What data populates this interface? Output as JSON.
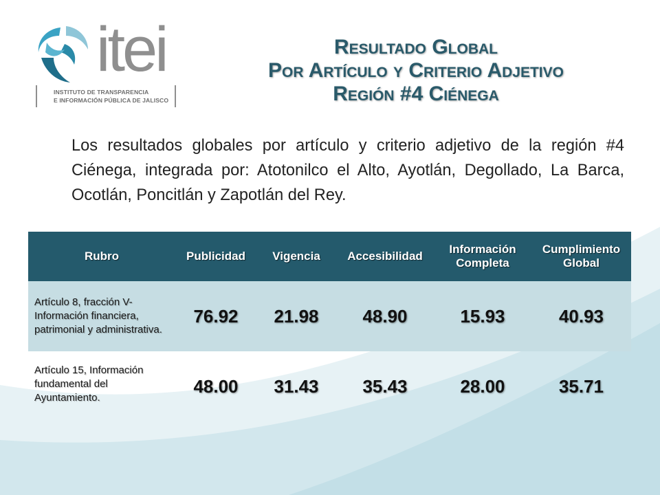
{
  "logo": {
    "wordmark": "itei",
    "subtitle_line1": "INSTITUTO DE TRANSPARENCIA",
    "subtitle_line2": "E INFORMACIÓN PÚBLICA DE JALISCO"
  },
  "title": {
    "line1": "Resultado Global",
    "line2": "Por Artículo y Criterio Adjetivo",
    "line3": "Región #4 Ciénega"
  },
  "intro": "Los resultados globales por artículo y criterio adjetivo de la región #4 Ciénega, integrada por: Atotonilco el Alto, Ayotlán, Degollado, La Barca, Ocotlán, Poncitlán y Zapotlán del Rey.",
  "table": {
    "headers": {
      "rubro": "Rubro",
      "publicidad": "Publicidad",
      "vigencia": "Vigencia",
      "accesibilidad": "Accesibilidad",
      "informacion_line1": "Información",
      "informacion_line2": "Completa",
      "cumplimiento_line1": "Cumplimiento",
      "cumplimiento_line2": "Global"
    },
    "rows": [
      {
        "rubro": "Artículo 8, fracción V- Información financiera, patrimonial y administrativa.",
        "publicidad": "76.92",
        "vigencia": "21.98",
        "accesibilidad": "48.90",
        "informacion_completa": "15.93",
        "cumplimiento_global": "40.93"
      },
      {
        "rubro": "Artículo 15, Información fundamental del Ayuntamiento.",
        "publicidad": "48.00",
        "vigencia": "31.43",
        "accesibilidad": "35.43",
        "informacion_completa": "28.00",
        "cumplimiento_global": "35.71"
      }
    ]
  },
  "colors": {
    "header_bg": "#245a6c",
    "row_highlight": "#c6dde3",
    "title": "#2a5a6a",
    "logo_teal": "#3aa3c4",
    "logo_gray": "#8f8f8f"
  }
}
